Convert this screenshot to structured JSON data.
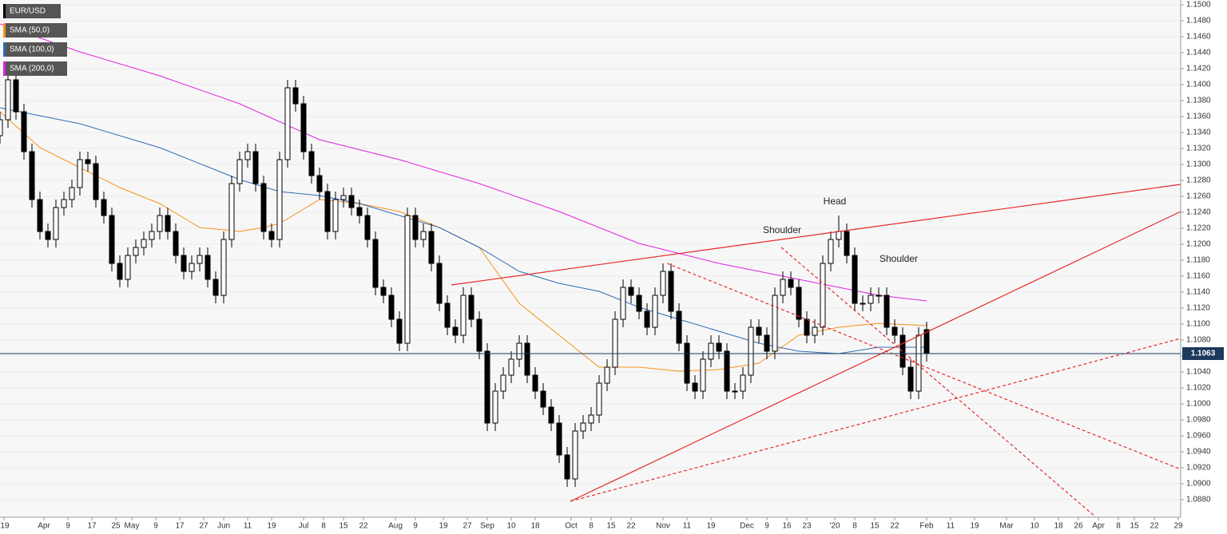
{
  "chart_data": {
    "type": "candlestick",
    "name": "EUR/USD",
    "candle_fields": [
      "x",
      "open",
      "high",
      "low",
      "close"
    ],
    "candles": [
      [
        0,
        1.1336,
        1.1366,
        1.1326,
        1.1356
      ],
      [
        2,
        1.1356,
        1.1416,
        1.1346,
        1.1406
      ],
      [
        4,
        1.1406,
        1.1416,
        1.1356,
        1.1366
      ],
      [
        6,
        1.1366,
        1.1376,
        1.1306,
        1.1316
      ],
      [
        8,
        1.1316,
        1.1326,
        1.1246,
        1.1256
      ],
      [
        10,
        1.1256,
        1.1266,
        1.1206,
        1.1216
      ],
      [
        12,
        1.1216,
        1.1226,
        1.1196,
        1.1206
      ],
      [
        14,
        1.1206,
        1.1256,
        1.1196,
        1.1246
      ],
      [
        16,
        1.1246,
        1.1266,
        1.1236,
        1.1256
      ],
      [
        18,
        1.1256,
        1.1281,
        1.1246,
        1.1271
      ],
      [
        20,
        1.1271,
        1.1316,
        1.1261,
        1.1306
      ],
      [
        22,
        1.1306,
        1.1316,
        1.1291,
        1.1301
      ],
      [
        24,
        1.1301,
        1.1311,
        1.1246,
        1.1256
      ],
      [
        26,
        1.1256,
        1.1266,
        1.1226,
        1.1236
      ],
      [
        28,
        1.1236,
        1.1246,
        1.1166,
        1.1176
      ],
      [
        30,
        1.1176,
        1.1186,
        1.1146,
        1.1156
      ],
      [
        32,
        1.1156,
        1.1196,
        1.1146,
        1.1186
      ],
      [
        34,
        1.1186,
        1.1206,
        1.1176,
        1.1196
      ],
      [
        36,
        1.1196,
        1.1216,
        1.1186,
        1.1206
      ],
      [
        38,
        1.1206,
        1.1226,
        1.1196,
        1.1216
      ],
      [
        40,
        1.1216,
        1.1246,
        1.1206,
        1.1236
      ],
      [
        42,
        1.1236,
        1.1246,
        1.1206,
        1.1216
      ],
      [
        44,
        1.1216,
        1.1226,
        1.1176,
        1.1186
      ],
      [
        46,
        1.1186,
        1.1196,
        1.1156,
        1.1166
      ],
      [
        48,
        1.1166,
        1.1186,
        1.1156,
        1.1176
      ],
      [
        50,
        1.1176,
        1.1196,
        1.1166,
        1.1186
      ],
      [
        52,
        1.1186,
        1.1196,
        1.1146,
        1.1156
      ],
      [
        54,
        1.1156,
        1.1166,
        1.1126,
        1.1136
      ],
      [
        56,
        1.1136,
        1.1216,
        1.1126,
        1.1206
      ],
      [
        58,
        1.1206,
        1.1286,
        1.1196,
        1.1276
      ],
      [
        60,
        1.1276,
        1.1316,
        1.1266,
        1.1306
      ],
      [
        62,
        1.1306,
        1.1326,
        1.1296,
        1.1316
      ],
      [
        64,
        1.1316,
        1.1326,
        1.1266,
        1.1276
      ],
      [
        66,
        1.1276,
        1.1286,
        1.1206,
        1.1216
      ],
      [
        68,
        1.1216,
        1.1226,
        1.1196,
        1.1206
      ],
      [
        70,
        1.1206,
        1.1316,
        1.1196,
        1.1306
      ],
      [
        72,
        1.1306,
        1.1406,
        1.1296,
        1.1396
      ],
      [
        74,
        1.1396,
        1.1406,
        1.1366,
        1.1376
      ],
      [
        76,
        1.1376,
        1.1386,
        1.1306,
        1.1316
      ],
      [
        78,
        1.1316,
        1.1326,
        1.1276,
        1.1286
      ],
      [
        80,
        1.1286,
        1.1296,
        1.1256,
        1.1266
      ],
      [
        82,
        1.1266,
        1.1276,
        1.1206,
        1.1216
      ],
      [
        84,
        1.1216,
        1.1266,
        1.1206,
        1.1256
      ],
      [
        86,
        1.1256,
        1.1271,
        1.1246,
        1.1261
      ],
      [
        88,
        1.1261,
        1.1271,
        1.1236,
        1.1246
      ],
      [
        90,
        1.1246,
        1.1256,
        1.1226,
        1.1236
      ],
      [
        92,
        1.1236,
        1.1246,
        1.1196,
        1.1206
      ],
      [
        94,
        1.1206,
        1.1216,
        1.1136,
        1.1146
      ],
      [
        96,
        1.1146,
        1.1156,
        1.1126,
        1.1136
      ],
      [
        98,
        1.1136,
        1.1146,
        1.1096,
        1.1106
      ],
      [
        100,
        1.1106,
        1.1116,
        1.1066,
        1.1076
      ],
      [
        102,
        1.1076,
        1.1246,
        1.1066,
        1.1236
      ],
      [
        104,
        1.1236,
        1.1246,
        1.1196,
        1.1206
      ],
      [
        106,
        1.1206,
        1.1226,
        1.1196,
        1.1216
      ],
      [
        108,
        1.1216,
        1.1226,
        1.1166,
        1.1176
      ],
      [
        110,
        1.1176,
        1.1186,
        1.1116,
        1.1126
      ],
      [
        112,
        1.1126,
        1.1136,
        1.1086,
        1.1096
      ],
      [
        114,
        1.1096,
        1.1106,
        1.1076,
        1.1086
      ],
      [
        116,
        1.1086,
        1.1146,
        1.1076,
        1.1136
      ],
      [
        118,
        1.1136,
        1.1146,
        1.1096,
        1.1106
      ],
      [
        120,
        1.1106,
        1.1116,
        1.1056,
        1.1066
      ],
      [
        122,
        1.1066,
        1.1076,
        1.0966,
        1.0976
      ],
      [
        124,
        1.0976,
        1.1026,
        1.0966,
        1.1016
      ],
      [
        126,
        1.1016,
        1.1046,
        1.1006,
        1.1036
      ],
      [
        128,
        1.1036,
        1.1066,
        1.1026,
        1.1056
      ],
      [
        130,
        1.1056,
        1.1086,
        1.1046,
        1.1076
      ],
      [
        132,
        1.1076,
        1.1086,
        1.1026,
        1.1036
      ],
      [
        134,
        1.1036,
        1.1046,
        1.1006,
        1.1016
      ],
      [
        136,
        1.1016,
        1.1026,
        1.0986,
        1.0996
      ],
      [
        138,
        1.0996,
        1.1006,
        1.0966,
        1.0976
      ],
      [
        140,
        1.0976,
        1.0986,
        1.0926,
        1.0936
      ],
      [
        142,
        1.0936,
        1.0946,
        1.0896,
        1.0906
      ],
      [
        144,
        1.0906,
        1.0976,
        1.0896,
        1.0966
      ],
      [
        146,
        1.0966,
        1.0986,
        1.0956,
        1.0976
      ],
      [
        148,
        1.0976,
        1.0996,
        1.0966,
        1.0986
      ],
      [
        150,
        1.0986,
        1.1036,
        1.0976,
        1.1026
      ],
      [
        152,
        1.1026,
        1.1056,
        1.1016,
        1.1046
      ],
      [
        154,
        1.1046,
        1.1116,
        1.1036,
        1.1106
      ],
      [
        156,
        1.1106,
        1.1156,
        1.1096,
        1.1146
      ],
      [
        158,
        1.1146,
        1.1156,
        1.1126,
        1.1136
      ],
      [
        160,
        1.1136,
        1.1146,
        1.1106,
        1.1116
      ],
      [
        162,
        1.1116,
        1.1126,
        1.1086,
        1.1096
      ],
      [
        164,
        1.1096,
        1.1146,
        1.1086,
        1.1136
      ],
      [
        166,
        1.1136,
        1.1176,
        1.1126,
        1.1166
      ],
      [
        168,
        1.1166,
        1.1176,
        1.1106,
        1.1116
      ],
      [
        170,
        1.1116,
        1.1126,
        1.1066,
        1.1076
      ],
      [
        172,
        1.1076,
        1.1086,
        1.1016,
        1.1026
      ],
      [
        174,
        1.1026,
        1.1036,
        1.1006,
        1.1016
      ],
      [
        176,
        1.1016,
        1.1066,
        1.1006,
        1.1056
      ],
      [
        178,
        1.1056,
        1.1086,
        1.1046,
        1.1076
      ],
      [
        180,
        1.1076,
        1.1086,
        1.1056,
        1.1066
      ],
      [
        182,
        1.1066,
        1.1076,
        1.1006,
        1.1016
      ],
      [
        184,
        1.1016,
        1.1026,
        1.1006,
        1.1016
      ],
      [
        186,
        1.1016,
        1.1046,
        1.1006,
        1.1036
      ],
      [
        188,
        1.1036,
        1.1106,
        1.1026,
        1.1096
      ],
      [
        190,
        1.1096,
        1.1106,
        1.1076,
        1.1086
      ],
      [
        192,
        1.1086,
        1.1096,
        1.1056,
        1.1066
      ],
      [
        194,
        1.1066,
        1.1146,
        1.1056,
        1.1136
      ],
      [
        196,
        1.1136,
        1.1166,
        1.1126,
        1.1156
      ],
      [
        198,
        1.1156,
        1.1166,
        1.1136,
        1.1146
      ],
      [
        200,
        1.1146,
        1.1156,
        1.1096,
        1.1106
      ],
      [
        202,
        1.1106,
        1.1116,
        1.1076,
        1.1086
      ],
      [
        204,
        1.1086,
        1.1106,
        1.1076,
        1.1096
      ],
      [
        206,
        1.1096,
        1.1186,
        1.1086,
        1.1176
      ],
      [
        208,
        1.1176,
        1.1216,
        1.1166,
        1.1206
      ],
      [
        210,
        1.1206,
        1.1236,
        1.1196,
        1.1216
      ],
      [
        212,
        1.1216,
        1.1226,
        1.1176,
        1.1186
      ],
      [
        214,
        1.1186,
        1.1196,
        1.1116,
        1.1126
      ],
      [
        216,
        1.1126,
        1.1136,
        1.1116,
        1.1126
      ],
      [
        218,
        1.1126,
        1.1146,
        1.1116,
        1.1136
      ],
      [
        220,
        1.1136,
        1.1146,
        1.1126,
        1.1136
      ],
      [
        222,
        1.1136,
        1.1146,
        1.1086,
        1.1096
      ],
      [
        224,
        1.1096,
        1.1106,
        1.1076,
        1.1086
      ],
      [
        226,
        1.1086,
        1.1096,
        1.1036,
        1.1046
      ],
      [
        228,
        1.1046,
        1.1056,
        1.1006,
        1.1016
      ],
      [
        230,
        1.1016,
        1.1096,
        1.1006,
        1.1086
      ],
      [
        232,
        1.1093,
        1.1103,
        1.1053,
        1.1063
      ]
    ],
    "up_color": "#ffffff",
    "down_color": "#000000",
    "series": [
      {
        "name": "SMA (50,0)",
        "color": "#f7931a",
        "x": [
          0,
          10,
          20,
          30,
          40,
          50,
          60,
          66,
          70,
          80,
          90,
          100,
          110,
          120,
          130,
          140,
          150,
          160,
          170,
          180,
          190,
          200,
          210,
          220,
          232
        ],
        "values": [
          1.1366,
          1.1321,
          1.1296,
          1.1271,
          1.1251,
          1.1221,
          1.1216,
          1.1221,
          1.1226,
          1.1256,
          1.1251,
          1.1241,
          1.1221,
          1.1196,
          1.1126,
          1.1086,
          1.1046,
          1.1046,
          1.1041,
          1.1043,
          1.1051,
          1.1086,
          1.1096,
          1.1101,
          1.1098
        ]
      },
      {
        "name": "SMA (100,0)",
        "color": "#2f6db5",
        "x": [
          0,
          20,
          40,
          60,
          70,
          80,
          90,
          100,
          110,
          120,
          130,
          140,
          150,
          160,
          170,
          180,
          190,
          200,
          210,
          220,
          232
        ],
        "values": [
          1.1371,
          1.1351,
          1.1321,
          1.1281,
          1.1266,
          1.1261,
          1.1251,
          1.1236,
          1.1221,
          1.1196,
          1.1166,
          1.1151,
          1.1141,
          1.1121,
          1.1106,
          1.1091,
          1.1076,
          1.1066,
          1.1063,
          1.1071,
          1.1071
        ]
      },
      {
        "name": "SMA (200,0)",
        "color": "#e020e0",
        "x": [
          0,
          20,
          40,
          60,
          80,
          100,
          120,
          140,
          160,
          180,
          190,
          200,
          210,
          220,
          232
        ],
        "values": [
          1.1476,
          1.1441,
          1.1411,
          1.1376,
          1.1331,
          1.1306,
          1.1276,
          1.1241,
          1.1201,
          1.1176,
          1.1166,
          1.1156,
          1.1146,
          1.1136,
          1.1129
        ]
      }
    ],
    "last_price": 1.1063,
    "annotations": [
      "Head",
      "Shoulder",
      "Shoulder"
    ],
    "xlim": [
      0,
      295.6
    ],
    "xticks": [
      {
        "value": 1,
        "label": "'19"
      },
      {
        "value": 11,
        "label": "Apr"
      },
      {
        "value": 17,
        "label": "9"
      },
      {
        "value": 23,
        "label": "17"
      },
      {
        "value": 29,
        "label": "25"
      },
      {
        "value": 33,
        "label": "May"
      },
      {
        "value": 39,
        "label": "9"
      },
      {
        "value": 45,
        "label": "17"
      },
      {
        "value": 51,
        "label": "27"
      },
      {
        "value": 56,
        "label": "Jun"
      },
      {
        "value": 62,
        "label": "11"
      },
      {
        "value": 68,
        "label": "19"
      },
      {
        "value": 76,
        "label": "Jul"
      },
      {
        "value": 81,
        "label": "8"
      },
      {
        "value": 86,
        "label": "15"
      },
      {
        "value": 91,
        "label": "22"
      },
      {
        "value": 99,
        "label": "Aug"
      },
      {
        "value": 104,
        "label": "9"
      },
      {
        "value": 111,
        "label": "19"
      },
      {
        "value": 117,
        "label": "27"
      },
      {
        "value": 122,
        "label": "Sep"
      },
      {
        "value": 128,
        "label": "10"
      },
      {
        "value": 134,
        "label": "18"
      },
      {
        "value": 143,
        "label": "Oct"
      },
      {
        "value": 148,
        "label": "8"
      },
      {
        "value": 153,
        "label": "15"
      },
      {
        "value": 158,
        "label": "22"
      },
      {
        "value": 166,
        "label": "Nov"
      },
      {
        "value": 172,
        "label": "11"
      },
      {
        "value": 178,
        "label": "19"
      },
      {
        "value": 187,
        "label": "Dec"
      },
      {
        "value": 192,
        "label": "9"
      },
      {
        "value": 197,
        "label": "16"
      },
      {
        "value": 202,
        "label": "23"
      },
      {
        "value": 209,
        "label": "'20"
      },
      {
        "value": 214,
        "label": "8"
      },
      {
        "value": 219,
        "label": "15"
      },
      {
        "value": 224,
        "label": "22"
      },
      {
        "value": 232,
        "label": "Feb"
      },
      {
        "value": 238,
        "label": "11"
      },
      {
        "value": 244,
        "label": "19"
      },
      {
        "value": 252,
        "label": "Mar"
      },
      {
        "value": 259,
        "label": "10"
      },
      {
        "value": 265,
        "label": "18"
      },
      {
        "value": 270,
        "label": "26"
      },
      {
        "value": 275,
        "label": "Apr"
      },
      {
        "value": 280,
        "label": "8"
      },
      {
        "value": 284,
        "label": "15"
      },
      {
        "value": 289,
        "label": "22"
      },
      {
        "value": 295,
        "label": "29"
      }
    ],
    "ylim": [
      1.0858,
      1.1506
    ],
    "yticks": [
      {
        "value": 1.088,
        "label": "1.0880"
      },
      {
        "value": 1.09,
        "label": "1.0900"
      },
      {
        "value": 1.092,
        "label": "1.0920"
      },
      {
        "value": 1.094,
        "label": "1.0940"
      },
      {
        "value": 1.096,
        "label": "1.0960"
      },
      {
        "value": 1.098,
        "label": "1.0980"
      },
      {
        "value": 1.1,
        "label": "1.1000"
      },
      {
        "value": 1.102,
        "label": "1.1020"
      },
      {
        "value": 1.104,
        "label": "1.1040"
      },
      {
        "value": 1.106,
        "label": "1.1060"
      },
      {
        "value": 1.108,
        "label": "1.1080"
      },
      {
        "value": 1.11,
        "label": "1.1100"
      },
      {
        "value": 1.112,
        "label": "1.1120"
      },
      {
        "value": 1.114,
        "label": "1.1140"
      },
      {
        "value": 1.116,
        "label": "1.1160"
      },
      {
        "value": 1.118,
        "label": "1.1180"
      },
      {
        "value": 1.12,
        "label": "1.1200"
      },
      {
        "value": 1.122,
        "label": "1.1220"
      },
      {
        "value": 1.124,
        "label": "1.1240"
      },
      {
        "value": 1.126,
        "label": "1.1260"
      },
      {
        "value": 1.128,
        "label": "1.1280"
      },
      {
        "value": 1.13,
        "label": "1.1300"
      },
      {
        "value": 1.132,
        "label": "1.1320"
      },
      {
        "value": 1.134,
        "label": "1.1340"
      },
      {
        "value": 1.136,
        "label": "1.1360"
      },
      {
        "value": 1.138,
        "label": "1.1380"
      },
      {
        "value": 1.14,
        "label": "1.1400"
      },
      {
        "value": 1.142,
        "label": "1.1420"
      },
      {
        "value": 1.144,
        "label": "1.1440"
      },
      {
        "value": 1.146,
        "label": "1.1460"
      },
      {
        "value": 1.148,
        "label": "1.1480"
      },
      {
        "value": 1.15,
        "label": "1.1500"
      }
    ],
    "grid": true
  }
}
